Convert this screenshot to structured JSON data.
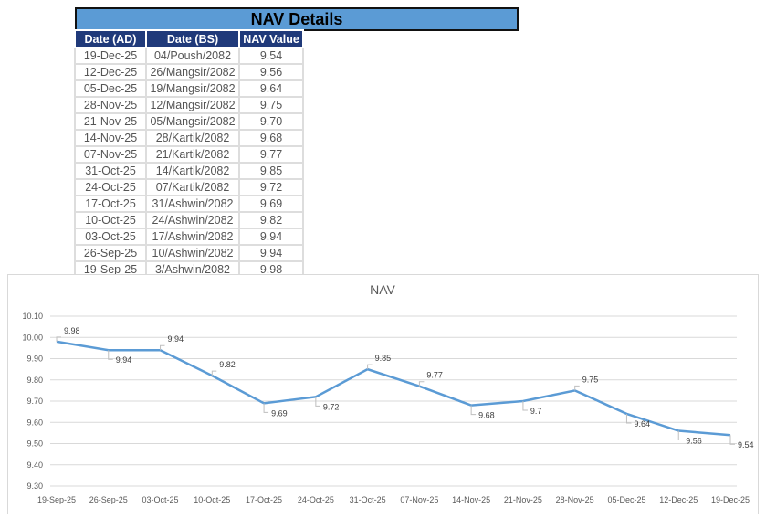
{
  "table": {
    "title": "NAV Details",
    "header": [
      "Date (AD)",
      "Date (BS)",
      "NAV Value"
    ],
    "rows": [
      [
        "19-Dec-25",
        "04/Poush/2082",
        "9.54"
      ],
      [
        "12-Dec-25",
        "26/Mangsir/2082",
        "9.56"
      ],
      [
        "05-Dec-25",
        "19/Mangsir/2082",
        "9.64"
      ],
      [
        "28-Nov-25",
        "12/Mangsir/2082",
        "9.75"
      ],
      [
        "21-Nov-25",
        "05/Mangsir/2082",
        "9.70"
      ],
      [
        "14-Nov-25",
        "28/Kartik/2082",
        "9.68"
      ],
      [
        "07-Nov-25",
        "21/Kartik/2082",
        "9.77"
      ],
      [
        "31-Oct-25",
        "14/Kartik/2082",
        "9.85"
      ],
      [
        "24-Oct-25",
        "07/Kartik/2082",
        "9.72"
      ],
      [
        "17-Oct-25",
        "31/Ashwin/2082",
        "9.69"
      ],
      [
        "10-Oct-25",
        "24/Ashwin/2082",
        "9.82"
      ],
      [
        "03-Oct-25",
        "17/Ashwin/2082",
        "9.94"
      ],
      [
        "26-Sep-25",
        "10/Ashwin/2082",
        "9.94"
      ],
      [
        "19-Sep-25",
        "3/Ashwin/2082",
        "9.98"
      ]
    ]
  },
  "chart_data": {
    "type": "line",
    "title": "NAV",
    "categories": [
      "19-Sep-25",
      "26-Sep-25",
      "03-Oct-25",
      "10-Oct-25",
      "17-Oct-25",
      "24-Oct-25",
      "31-Oct-25",
      "07-Nov-25",
      "14-Nov-25",
      "21-Nov-25",
      "28-Nov-25",
      "05-Dec-25",
      "12-Dec-25",
      "19-Dec-25"
    ],
    "values": [
      9.98,
      9.94,
      9.94,
      9.82,
      9.69,
      9.72,
      9.85,
      9.77,
      9.68,
      9.7,
      9.75,
      9.64,
      9.56,
      9.54
    ],
    "value_labels": [
      "9.98",
      "9.94",
      "9.94",
      "9.82",
      "9.69",
      "9.72",
      "9.85",
      "9.77",
      "9.68",
      "9.7",
      "9.75",
      "9.64",
      "9.56",
      "9.54"
    ],
    "color": "#5b9bd5",
    "ylim": [
      9.3,
      10.1
    ],
    "yticks": [
      {
        "value": 9.3,
        "label": "9.30"
      },
      {
        "value": 9.4,
        "label": "9.40"
      },
      {
        "value": 9.5,
        "label": "9.50"
      },
      {
        "value": 9.6,
        "label": "9.60"
      },
      {
        "value": 9.7,
        "label": "9.70"
      },
      {
        "value": 9.8,
        "label": "9.80"
      },
      {
        "value": 9.9,
        "label": "9.90"
      },
      {
        "value": 10,
        "label": "10.00"
      },
      {
        "value": 10.1,
        "label": "10.10"
      }
    ],
    "grid": true
  }
}
